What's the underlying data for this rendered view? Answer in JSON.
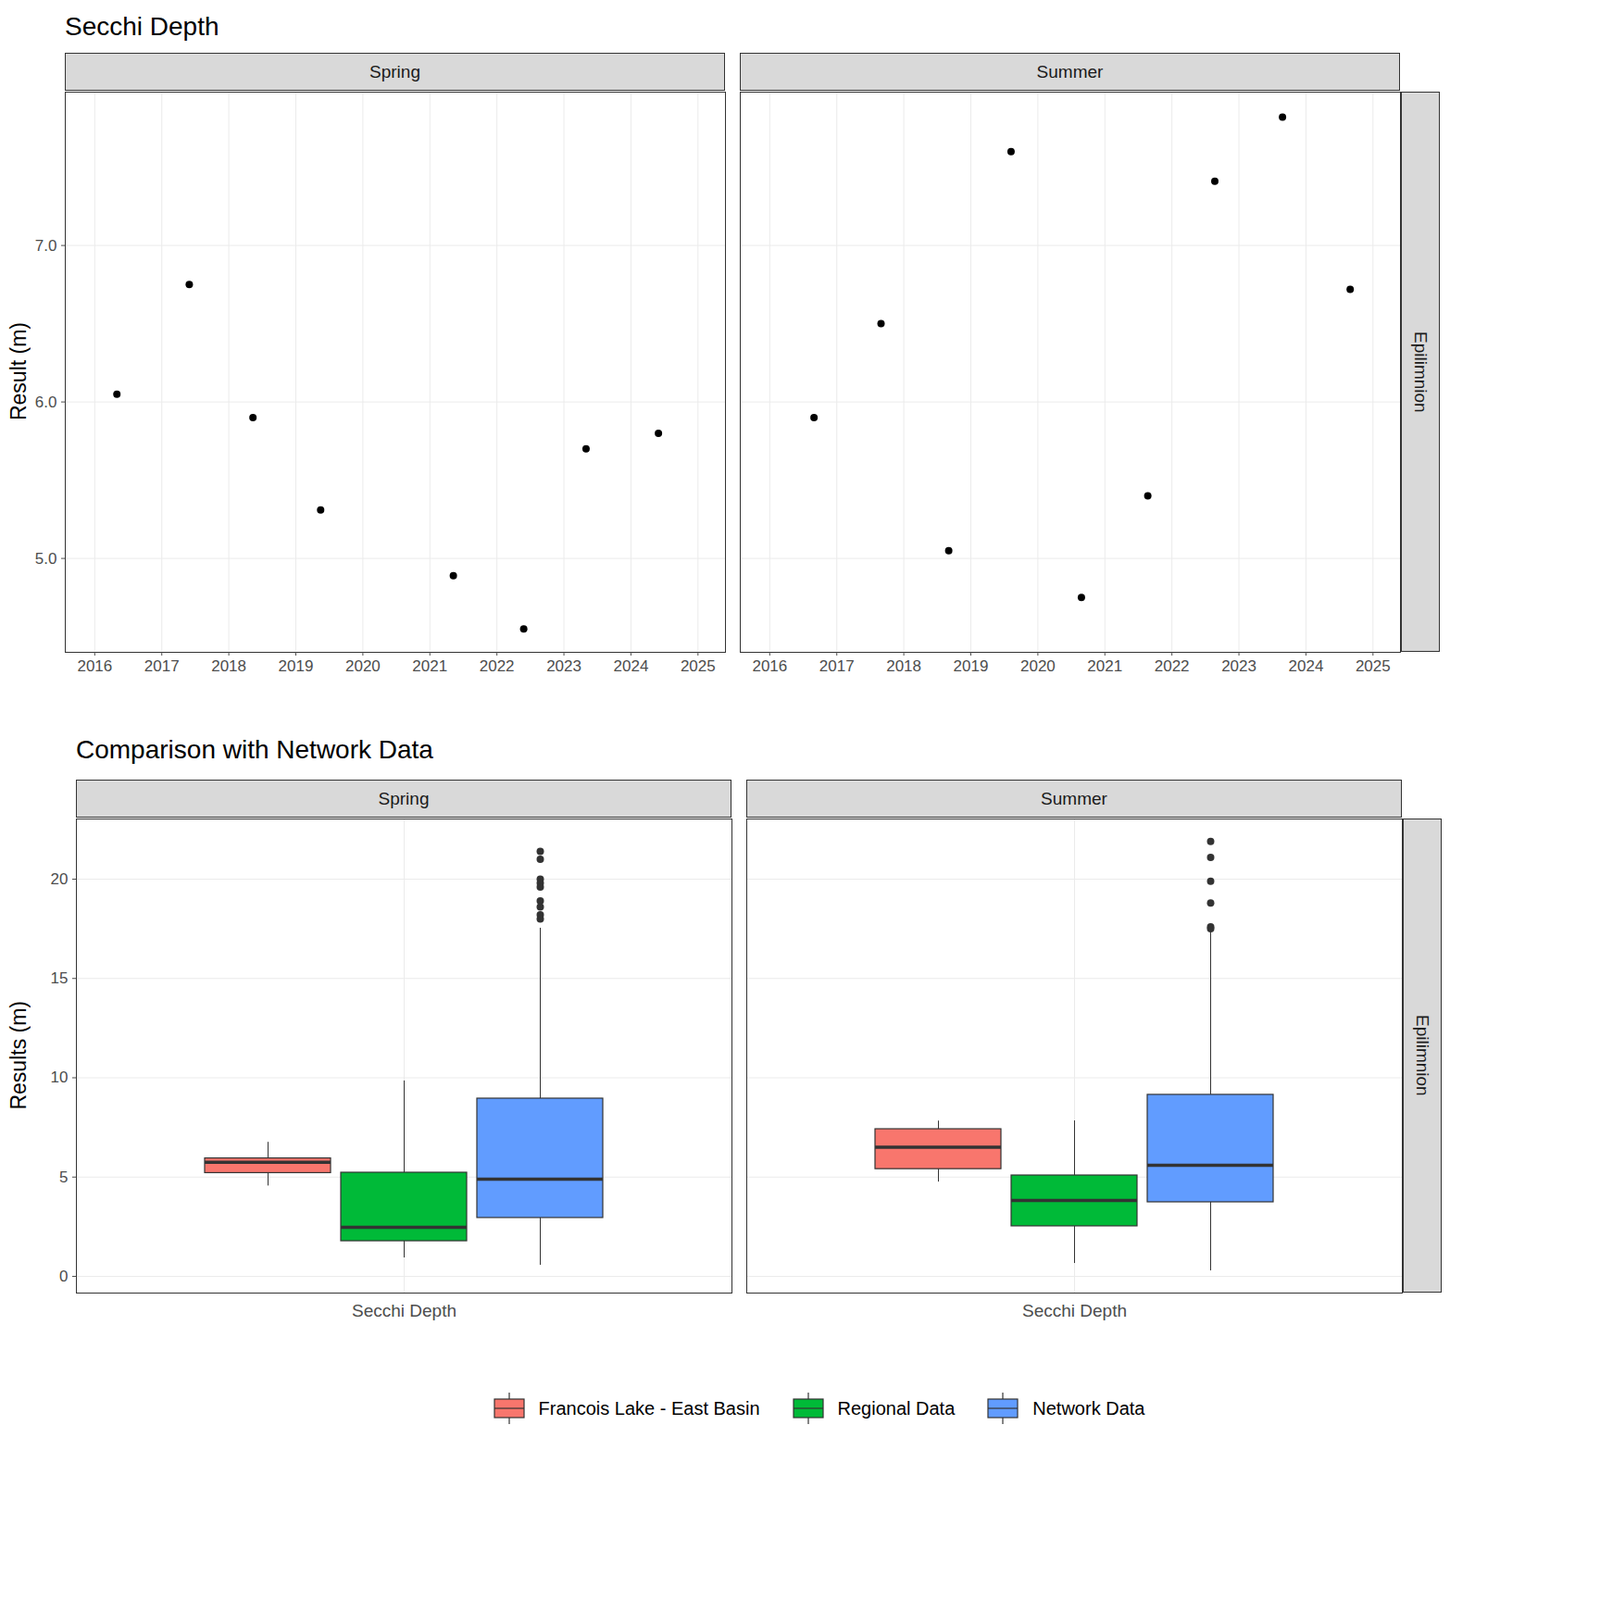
{
  "chart_data": [
    {
      "type": "scatter",
      "title": "Secchi Depth",
      "y_label": "Result (m)",
      "row_facet": "Epilimnion",
      "color": "#000000",
      "grid": true,
      "xlim": [
        2015.56,
        2025.41
      ],
      "xticks": [
        2016,
        2017,
        2018,
        2019,
        2020,
        2021,
        2022,
        2023,
        2024,
        2025
      ],
      "ylim": [
        4.4,
        7.98
      ],
      "yticks": [
        5,
        6,
        7
      ],
      "series": [
        {
          "name": "Spring",
          "x": [
            2016.33,
            2017.41,
            2018.36,
            2019.37,
            2021.35,
            2022.4,
            2023.33,
            2024.41
          ],
          "values": [
            6.05,
            6.75,
            5.9,
            5.31,
            4.89,
            4.55,
            5.7,
            5.8
          ]
        },
        {
          "name": "Summer",
          "x": [
            2016.66,
            2017.66,
            2018.67,
            2019.6,
            2020.65,
            2021.64,
            2022.64,
            2023.65,
            2024.66
          ],
          "values": [
            5.9,
            6.5,
            5.05,
            7.6,
            4.75,
            5.4,
            7.41,
            7.82,
            6.72
          ]
        }
      ]
    },
    {
      "type": "box",
      "title": "Comparison with Network Data",
      "y_label": "Results (m)",
      "row_facet": "Epilimnion",
      "categories": [
        "Secchi Depth"
      ],
      "facets": [
        "Spring",
        "Summer"
      ],
      "legend": "bottom",
      "grid": true,
      "ylim": [
        -0.84,
        23.03
      ],
      "yticks": [
        0,
        5,
        10,
        15,
        20
      ],
      "series": [
        {
          "name": "Francois Lake - East Basin",
          "color": "#F8766D",
          "boxes": [
            {
              "min": 4.55,
              "q1": 5.2,
              "median": 5.75,
              "q3": 5.94,
              "max": 6.75,
              "outliers": []
            },
            {
              "min": 4.75,
              "q1": 5.4,
              "median": 6.5,
              "q3": 7.41,
              "max": 7.82,
              "outliers": []
            }
          ]
        },
        {
          "name": "Regional Data",
          "color": "#00BA38",
          "boxes": [
            {
              "min": 0.93,
              "q1": 1.77,
              "median": 2.47,
              "q3": 5.22,
              "max": 9.84,
              "outliers": []
            },
            {
              "min": 0.65,
              "q1": 2.52,
              "median": 3.82,
              "q3": 5.08,
              "max": 7.83,
              "outliers": []
            }
          ]
        },
        {
          "name": "Network Data",
          "color": "#619CFF",
          "boxes": [
            {
              "min": 0.56,
              "q1": 2.94,
              "median": 4.9,
              "q3": 8.95,
              "max": 17.53,
              "outliers": [
                21.4,
                21.0,
                20.0,
                19.8,
                19.6,
                18.9,
                18.6,
                18.2,
                18.0
              ]
            },
            {
              "min": 0.28,
              "q1": 3.73,
              "median": 5.59,
              "q3": 9.14,
              "max": 17.4,
              "outliers": [
                21.9,
                21.1,
                19.9,
                18.8,
                17.6,
                17.5
              ]
            }
          ]
        }
      ]
    }
  ]
}
